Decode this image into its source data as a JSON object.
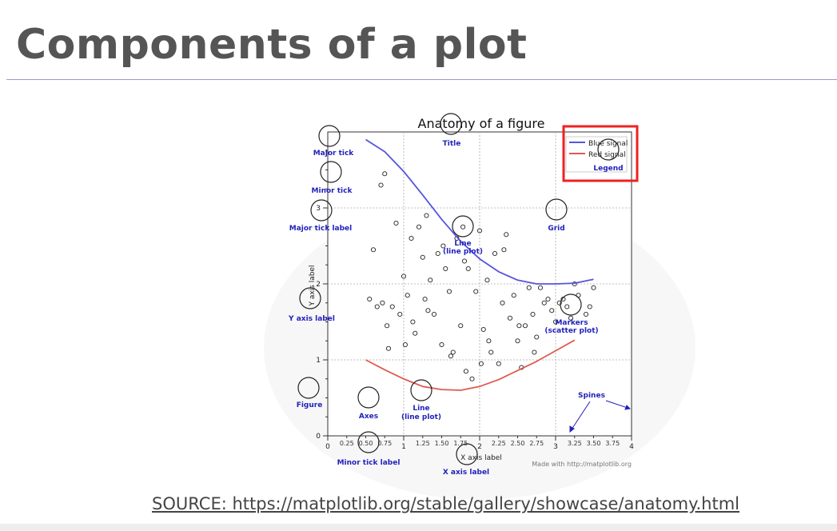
{
  "slide": {
    "title": "Components of a plot",
    "source": "SOURCE: https://matplotlib.org/stable/gallery/showcase/anatomy.html"
  },
  "figure": {
    "title": "Anatomy of a figure",
    "ylabel": "Y axis label",
    "xlabel": "X axis label",
    "credit": "Made with http://matplotlib.org",
    "legend": [
      "Blue signal",
      "Red signal"
    ],
    "colors": {
      "blue": "#5555dd",
      "red": "#e05a4f",
      "annot": "#2222bb",
      "highlight": "#ee2222"
    }
  },
  "annotations": {
    "major_tick": "Major tick",
    "minor_tick": "Minor tick",
    "major_tick_label": "Major tick label",
    "y_axis_label": "Y axis label",
    "figure": "Figure",
    "axes": "Axes",
    "line_bottom_1": "Line",
    "line_bottom_2": "(line plot)",
    "line_top_1": "Line",
    "line_top_2": "(line plot)",
    "title": "Title",
    "grid": "Grid",
    "legend": "Legend",
    "markers_1": "Markers",
    "markers_2": "(scatter plot)",
    "spines": "Spines",
    "minor_tick_label": "Minor tick label",
    "x_axis_label": "X axis label"
  },
  "chart_data": {
    "type": "line",
    "title": "Anatomy of a figure",
    "xlabel": "X axis label",
    "ylabel": "Y axis label",
    "xlim": [
      0,
      4
    ],
    "ylim": [
      0,
      4
    ],
    "x_major_ticks": [
      "0",
      "1",
      "2",
      "3",
      "4"
    ],
    "y_major_ticks": [
      "0",
      "1",
      "2",
      "3"
    ],
    "x_minor_ticks": [
      "0.25",
      "0.50",
      "0.75",
      "1.25",
      "1.50",
      "1.75",
      "2.25",
      "2.50",
      "2.75",
      "3.25",
      "3.50",
      "3.75"
    ],
    "grid": true,
    "legend_position": "upper right",
    "series": [
      {
        "name": "Blue signal",
        "color": "#5555dd",
        "x": [
          0.5,
          0.75,
          1.0,
          1.25,
          1.5,
          1.75,
          2.0,
          2.25,
          2.5,
          2.75,
          3.0,
          3.25,
          3.5
        ],
        "y": [
          3.9,
          3.74,
          3.48,
          3.17,
          2.85,
          2.56,
          2.33,
          2.16,
          2.05,
          2.0,
          2.0,
          2.01,
          2.06
        ]
      },
      {
        "name": "Red signal",
        "color": "#e05a4f",
        "x": [
          0.5,
          0.75,
          1.0,
          1.25,
          1.5,
          1.75,
          2.0,
          2.25,
          2.5,
          2.75,
          3.0,
          3.25
        ],
        "y": [
          1.0,
          0.87,
          0.75,
          0.65,
          0.61,
          0.6,
          0.65,
          0.74,
          0.86,
          0.98,
          1.12,
          1.26
        ]
      }
    ],
    "scatter": {
      "x": [
        0.55,
        0.6,
        0.65,
        0.7,
        0.72,
        0.75,
        0.8,
        0.85,
        0.9,
        0.95,
        1.0,
        1.02,
        1.05,
        1.1,
        1.12,
        1.15,
        1.2,
        1.25,
        1.28,
        1.3,
        1.35,
        1.4,
        1.45,
        1.5,
        1.55,
        1.6,
        1.65,
        1.7,
        1.75,
        1.8,
        1.85,
        1.9,
        1.95,
        2.0,
        2.05,
        2.1,
        2.15,
        2.2,
        2.25,
        2.3,
        2.35,
        2.4,
        2.45,
        2.5,
        2.55,
        2.6,
        2.65,
        2.7,
        2.75,
        2.8,
        2.85,
        2.9,
        2.95,
        3.0,
        3.05,
        3.1,
        3.15,
        3.2,
        3.25,
        3.3,
        3.4,
        3.45,
        3.5,
        0.78,
        1.32,
        1.52,
        1.62,
        1.78,
        1.82,
        2.02,
        2.12,
        2.32,
        2.52,
        2.72
      ],
      "y": [
        1.8,
        2.45,
        1.7,
        3.3,
        1.75,
        3.45,
        1.15,
        1.7,
        2.8,
        1.6,
        2.1,
        1.2,
        1.85,
        2.6,
        1.5,
        1.35,
        2.75,
        2.35,
        1.8,
        2.9,
        2.05,
        1.6,
        2.4,
        1.2,
        2.2,
        1.9,
        1.1,
        2.6,
        1.45,
        2.3,
        2.2,
        0.75,
        1.9,
        2.7,
        1.4,
        2.05,
        1.1,
        2.4,
        0.95,
        1.75,
        2.65,
        1.55,
        1.85,
        1.25,
        0.9,
        1.45,
        1.95,
        1.6,
        1.3,
        1.95,
        1.75,
        1.8,
        1.65,
        1.5,
        1.75,
        1.8,
        1.7,
        1.55,
        2.0,
        1.85,
        1.6,
        1.7,
        1.95,
        1.45,
        1.65,
        2.5,
        1.05,
        2.75,
        0.85,
        0.95,
        1.25,
        2.45,
        1.45,
        1.1
      ],
      "marker": "circle",
      "fill": "none"
    }
  }
}
